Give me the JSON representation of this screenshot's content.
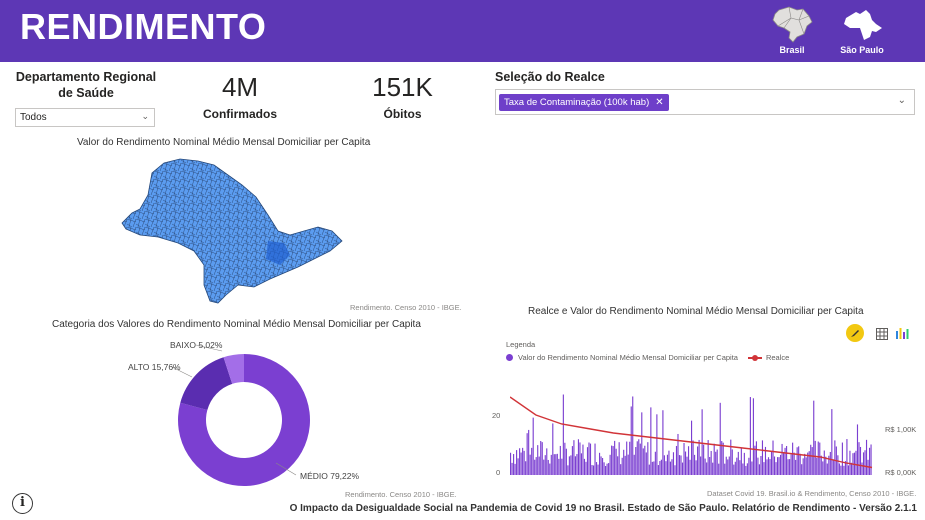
{
  "header": {
    "title": "RENDIMENTO",
    "brasil_label": "Brasil",
    "sp_label": "São Paulo"
  },
  "filters": {
    "dept_label": "Departamento Regional de Saúde",
    "dept_value": "Todos",
    "realce_label": "Seleção do Realce",
    "realce_chip": "Taxa de Contaminação (100k hab)"
  },
  "kpis": [
    {
      "value": "4M",
      "label": "Confirmados"
    },
    {
      "value": "151K",
      "label": "Óbitos"
    }
  ],
  "map": {
    "title": "Valor do Rendimento Nominal Médio Mensal Domiciliar per Capita",
    "source": "Rendimento. Censo 2010 - IBGE."
  },
  "donut": {
    "title": "Categoria dos Valores do Rendimento Nominal Médio Mensal Domiciliar per Capita",
    "source": "Rendimento. Censo 2010 - IBGE.",
    "segments": [
      {
        "name": "MÉDIO",
        "label": "MÉDIO 79,22%",
        "value": 79.22,
        "color": "#7b3fd1"
      },
      {
        "name": "ALTO",
        "label": "ALTO 15,76%",
        "value": 15.76,
        "color": "#5a2db0"
      },
      {
        "name": "BAIXO",
        "label": "BAIXO 5,02%",
        "value": 5.02,
        "color": "#a36ee8"
      }
    ]
  },
  "combo": {
    "title": "Realce e Valor do Rendimento Nominal Médio Mensal Domiciliar per Capita",
    "legend_title": "Legenda",
    "legend_bar": "Valor do Rendimento Nominal Médio Mensal Domiciliar per Capita",
    "legend_line": "Realce",
    "left_ticks": [
      "20",
      "0"
    ],
    "right_ticks": [
      "R$ 1,00K",
      "R$ 0,00K"
    ],
    "source": "Dataset Covid 19. Brasil.io  & Rendimento, Censo 2010 - IBGE.",
    "bar_color": "#7b3fd1",
    "line_color": "#d13438"
  },
  "chart_data": [
    {
      "type": "pie",
      "title": "Categoria dos Valores do Rendimento Nominal Médio Mensal Domiciliar per Capita",
      "categories": [
        "MÉDIO",
        "ALTO",
        "BAIXO"
      ],
      "values": [
        79.22,
        15.76,
        5.02
      ]
    },
    {
      "type": "bar",
      "title": "Realce e Valor do Rendimento Nominal Médio Mensal Domiciliar per Capita",
      "left_axis_ticks": [
        0,
        20
      ],
      "right_axis_ticks": [
        "R$ 0,00K",
        "R$ 1,00K"
      ],
      "series": [
        {
          "name": "Valor do Rendimento Nominal Médio Mensal Domiciliar per Capita",
          "kind": "bar",
          "values_range": [
            3,
            28
          ]
        },
        {
          "name": "Realce",
          "kind": "line",
          "values": [
            26,
            20,
            17,
            15.5,
            14,
            13,
            12,
            11,
            10,
            9,
            8,
            7,
            6,
            4,
            2.5
          ]
        }
      ]
    }
  ],
  "footer": {
    "text": "O Impacto da Desigualdade Social na Pandemia de Covid 19 no Brasil. Estado de São Paulo. Relatório de Rendimento - Versão 2.1.1"
  }
}
